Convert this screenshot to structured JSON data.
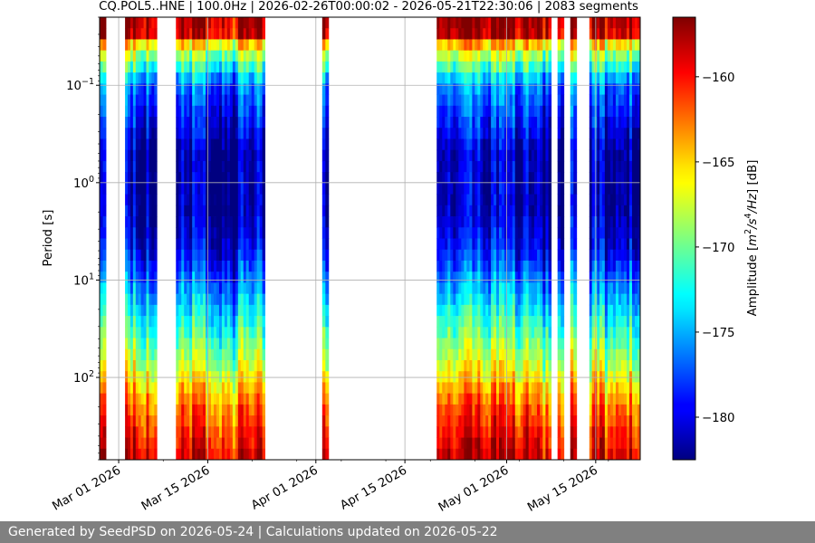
{
  "chart_data": {
    "type": "heatmap",
    "title": "CQ.POL5..HNE | 100.0Hz | 2026-02-26T00:00:02 - 2026-05-21T22:30:06 | 2083 segments",
    "ylabel": "Period [s]",
    "y_scale": "log",
    "y_inverted": true,
    "ylim": [
      0.02,
      700
    ],
    "y_ticks": [
      {
        "value": 0.1,
        "label": "10",
        "exp": "−1"
      },
      {
        "value": 1,
        "label": "10",
        "exp": "0"
      },
      {
        "value": 10,
        "label": "10",
        "exp": "1"
      },
      {
        "value": 100,
        "label": "10",
        "exp": "2"
      }
    ],
    "xlim": [
      "2026-02-26",
      "2026-05-22"
    ],
    "x_ticks": [
      {
        "date": "2026-03-01",
        "label": "Mar 01 2026"
      },
      {
        "date": "2026-03-15",
        "label": "Mar 15 2026"
      },
      {
        "date": "2026-04-01",
        "label": "Apr 01 2026"
      },
      {
        "date": "2026-04-15",
        "label": "Apr 15 2026"
      },
      {
        "date": "2026-05-01",
        "label": "May 01 2026"
      },
      {
        "date": "2026-05-15",
        "label": "May 15 2026"
      }
    ],
    "grid": true,
    "colorbar": {
      "label": "Amplitude [m²/s⁴/Hz] [dB]",
      "label_parts": [
        "Amplitude [",
        "m",
        "2",
        "/s",
        "4",
        "/Hz",
        "] [dB]"
      ],
      "range": [
        -182.5,
        -156.5
      ],
      "ticks": [
        -160,
        -165,
        -170,
        -175,
        -180
      ],
      "tick_labels": [
        "−160",
        "−165",
        "−170",
        "−175",
        "−180"
      ],
      "colormap": "jet"
    },
    "data_coverage": [
      [
        "2026-02-26",
        "2026-02-27"
      ],
      [
        "2026-03-02",
        "2026-03-07"
      ],
      [
        "2026-03-10",
        "2026-03-24"
      ],
      [
        "2026-04-02",
        "2026-04-03"
      ],
      [
        "2026-04-20",
        "2026-04-26"
      ],
      [
        "2026-04-26",
        "2026-05-04"
      ],
      [
        "2026-05-04",
        "2026-05-08"
      ],
      [
        "2026-05-09",
        "2026-05-10"
      ],
      [
        "2026-05-11",
        "2026-05-12"
      ],
      [
        "2026-05-14",
        "2026-05-16"
      ],
      [
        "2026-05-16",
        "2026-05-19"
      ],
      [
        "2026-05-19",
        "2026-05-22"
      ]
    ],
    "spectral_profile": [
      {
        "period": 0.02,
        "db": -157
      },
      {
        "period": 0.03,
        "db": -158
      },
      {
        "period": 0.04,
        "db": -166
      },
      {
        "period": 0.1,
        "db": -176
      },
      {
        "period": 0.5,
        "db": -181
      },
      {
        "period": 2,
        "db": -181
      },
      {
        "period": 5,
        "db": -179
      },
      {
        "period": 20,
        "db": -173
      },
      {
        "period": 80,
        "db": -167
      },
      {
        "period": 200,
        "db": -162
      },
      {
        "period": 700,
        "db": -158
      }
    ]
  },
  "footer": {
    "text": "Generated by SeedPSD on 2026-05-24 | Calculations updated on 2026-05-22"
  }
}
